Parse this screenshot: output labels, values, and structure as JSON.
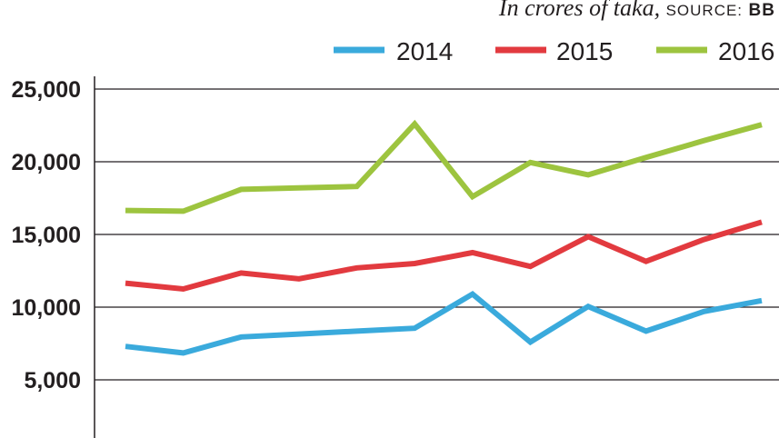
{
  "header": {
    "unit_text": "In crores of taka,",
    "source_label": "SOURCE:",
    "source_value": "BB"
  },
  "chart_data": {
    "type": "line",
    "title": "",
    "xlabel": "",
    "ylabel": "",
    "ylim": [
      0,
      25000
    ],
    "yticks": [
      5000,
      10000,
      15000,
      20000,
      25000
    ],
    "ytick_labels": [
      "5,000",
      "10,000",
      "15,000",
      "20,000",
      "25,000"
    ],
    "grid": true,
    "legend_position": "top",
    "x": [
      1,
      2,
      3,
      4,
      5,
      6,
      7,
      8,
      9,
      10,
      11,
      12
    ],
    "series": [
      {
        "name": "2014",
        "color": "#3aaadc",
        "values": [
          7300,
          6850,
          7950,
          8150,
          8350,
          8550,
          10900,
          7600,
          10050,
          8350,
          9700,
          10450
        ]
      },
      {
        "name": "2015",
        "color": "#e23a3f",
        "values": [
          11650,
          11250,
          12350,
          11950,
          12700,
          13000,
          13750,
          12800,
          14850,
          13150,
          14650,
          15850
        ]
      },
      {
        "name": "2016",
        "color": "#9dc43f",
        "values": [
          16650,
          16600,
          18100,
          18200,
          18300,
          22600,
          17600,
          19950,
          19100,
          20300,
          21450,
          22550
        ]
      }
    ]
  }
}
